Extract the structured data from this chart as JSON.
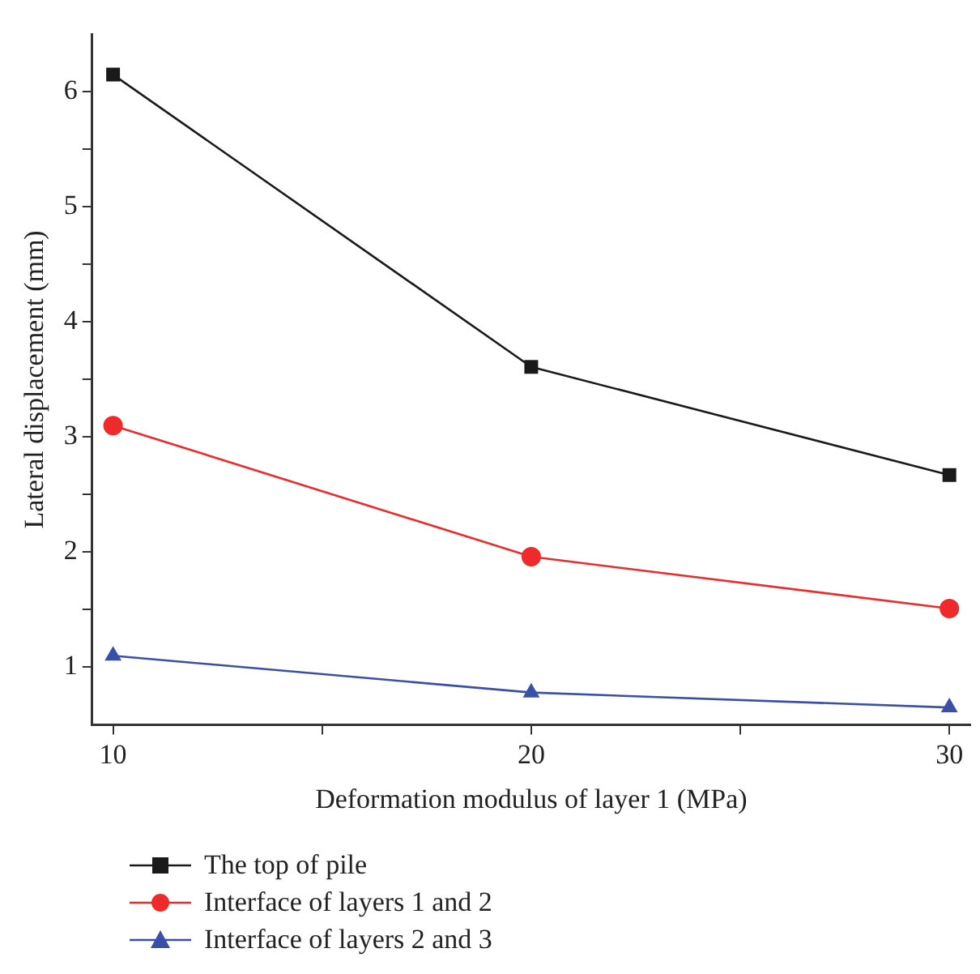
{
  "chart_data": {
    "type": "line",
    "xlabel": "Deformation modulus of layer 1 (MPa)",
    "ylabel": "Lateral displacement (mm)",
    "x": [
      10,
      20,
      30
    ],
    "series": [
      {
        "name": "The top of pile",
        "color": "#1a1a1a",
        "marker": "square",
        "values": [
          6.15,
          3.61,
          2.67
        ]
      },
      {
        "name": "Interface of layers 1 and 2",
        "color": "#ee2a2a",
        "marker": "circle",
        "values": [
          3.1,
          1.96,
          1.51
        ]
      },
      {
        "name": "Interface of layers 2 and 3",
        "color": "#3a4fa8",
        "marker": "triangle",
        "values": [
          1.1,
          0.78,
          0.65
        ]
      }
    ],
    "xlim": [
      9.5,
      30.5
    ],
    "xticks": [
      10,
      {
        "value": 15,
        "label": null
      },
      20,
      {
        "value": 25,
        "label": null
      },
      30
    ],
    "ylim": [
      0.5,
      6.5
    ],
    "yticks": [
      1,
      {
        "value": 1.5,
        "label": null
      },
      2,
      {
        "value": 2.5,
        "label": null
      },
      3,
      {
        "value": 3.5,
        "label": null
      },
      4,
      {
        "value": 4.5,
        "label": null
      },
      5,
      {
        "value": 5.5,
        "label": null
      },
      6
    ],
    "grid": false,
    "legend": "bottom",
    "line_style": "solid"
  }
}
